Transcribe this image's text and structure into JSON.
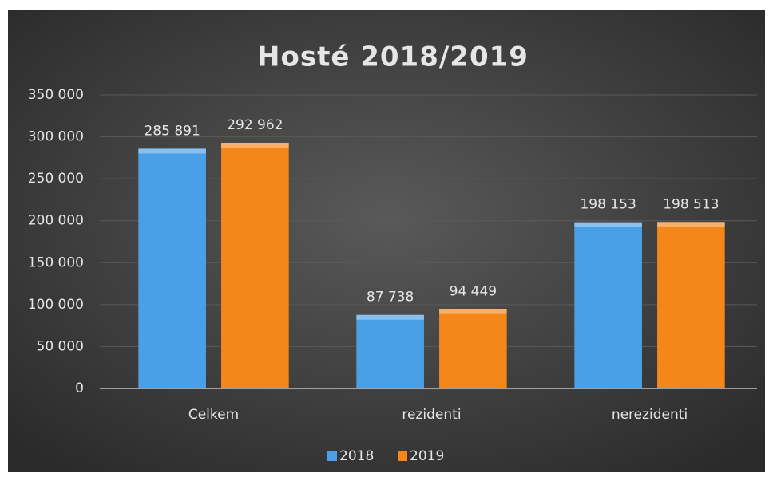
{
  "chart_data": {
    "type": "bar",
    "title": "Hosté 2018/2019",
    "categories": [
      "Celkem",
      "rezidenti",
      "nerezidenti"
    ],
    "series": [
      {
        "name": "2018",
        "color": "#4a9fe6",
        "values": [
          285891,
          87738,
          198153
        ],
        "value_labels": [
          "285 891",
          "87 738",
          "198 153"
        ]
      },
      {
        "name": "2019",
        "color": "#f5861a",
        "values": [
          292962,
          94449,
          198513
        ],
        "value_labels": [
          "292 962",
          "94 449",
          "198 513"
        ]
      }
    ],
    "ylim": [
      0,
      350000
    ],
    "yticks": [
      0,
      {
        "value": 50000,
        "label": "50 000"
      },
      {
        "value": 100000,
        "label": "100 000"
      },
      {
        "value": 150000,
        "label": "150 000"
      },
      {
        "value": 200000,
        "label": "200 000"
      },
      {
        "value": 250000,
        "label": "250 000"
      },
      {
        "value": 300000,
        "label": "300 000"
      },
      {
        "value": 350000,
        "label": "350 000"
      }
    ],
    "grid": true,
    "legend": "bottom"
  }
}
